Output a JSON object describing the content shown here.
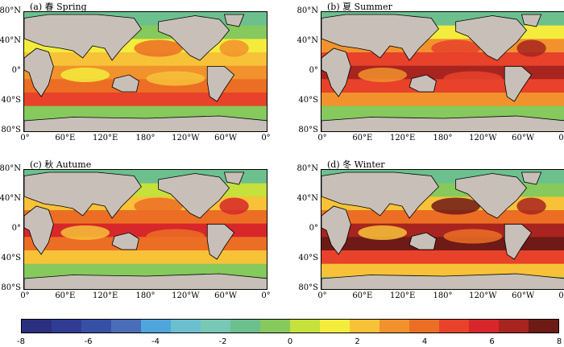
{
  "panels": [
    {
      "id": "spring",
      "title": "(a) 春 Spring"
    },
    {
      "id": "summer",
      "title": "(b) 夏 Summer"
    },
    {
      "id": "autumn",
      "title": "(c) 秋 Autume"
    },
    {
      "id": "winter",
      "title": "(d) 冬 Winter"
    }
  ],
  "lat_labels": [
    "80°N",
    "40°N",
    "0°",
    "40°S",
    "80°S"
  ],
  "lon_labels": [
    "0°",
    "60°E",
    "120°E",
    "180°",
    "120°W",
    "60°W",
    "0°"
  ],
  "colorbar": {
    "ticks": [
      "-8",
      "-6",
      "-4",
      "-2",
      "0",
      "2",
      "4",
      "6",
      "8"
    ],
    "colors": [
      "#2b2f7f",
      "#303c94",
      "#3650a6",
      "#4a6db8",
      "#4ea6dd",
      "#6bbfcf",
      "#77c8b4",
      "#6cc08e",
      "#86c95c",
      "#c6e03c",
      "#f3ec3c",
      "#f7c238",
      "#f2922c",
      "#ec6e24",
      "#e8422a",
      "#d7272a",
      "#a8241f",
      "#6e1a16"
    ]
  },
  "colors": {
    "land": "#c8c0b8",
    "coast": "#000000"
  }
}
